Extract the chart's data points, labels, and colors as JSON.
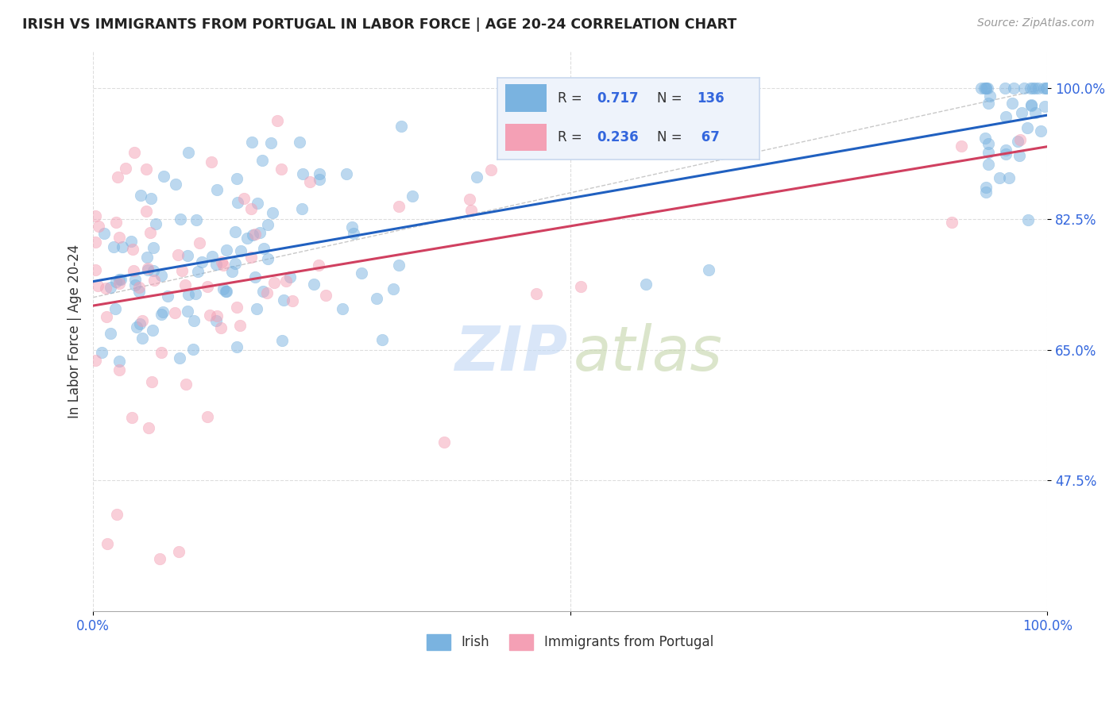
{
  "title": "IRISH VS IMMIGRANTS FROM PORTUGAL IN LABOR FORCE | AGE 20-24 CORRELATION CHART",
  "source_text": "Source: ZipAtlas.com",
  "ylabel": "In Labor Force | Age 20-24",
  "ytick_labels": [
    "100.0%",
    "82.5%",
    "65.0%",
    "47.5%"
  ],
  "ytick_values": [
    1.0,
    0.825,
    0.65,
    0.475
  ],
  "xmin": 0.0,
  "xmax": 1.0,
  "ymin": 0.3,
  "ymax": 1.05,
  "blue_R": 0.717,
  "blue_N": 136,
  "pink_R": 0.236,
  "pink_N": 67,
  "blue_color": "#7ab3e0",
  "pink_color": "#f4a0b5",
  "blue_line_color": "#2060c0",
  "pink_line_color": "#d04060",
  "ref_line_color": "#bbbbbb",
  "legend_box_color": "#eef3fb",
  "legend_border_color": "#c8d8ee",
  "watermark_zip_color": "#c5daf5",
  "watermark_atlas_color": "#c8d8b0",
  "tick_color_blue": "#3366dd",
  "tick_color_grey": "#777777"
}
